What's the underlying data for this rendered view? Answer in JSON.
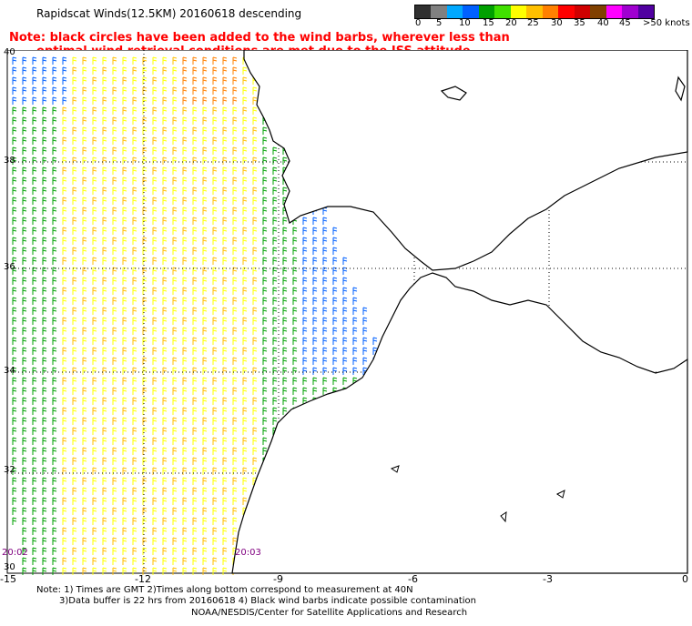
{
  "header": {
    "title": "Rapidscat Winds(12.5KM) 20160618 descending",
    "note_line1": "Note: black circles have been added to the wind barbs, wherever less than",
    "note_line2": "optimal wind retrieval conditions are met due to the ISS attitude changes."
  },
  "legend": {
    "colors": [
      "#303030",
      "#808080",
      "#00a8ff",
      "#0060ff",
      "#00a000",
      "#40e000",
      "#ffff00",
      "#ffc000",
      "#ff8000",
      "#ff0000",
      "#d00000",
      "#804000",
      "#ff00ff",
      "#a000d0",
      "#5000a0"
    ],
    "labels": [
      "0",
      "5",
      "10",
      "15",
      "20",
      "25",
      "30",
      "35",
      "40",
      "45",
      ">50 knots"
    ]
  },
  "axes": {
    "lon_labels": [
      "-15",
      "-12",
      "-9",
      "-6",
      "-3",
      "0"
    ],
    "lat_labels": [
      "40",
      "38",
      "36",
      "34",
      "32",
      "30"
    ]
  },
  "times": {
    "left": "20:02",
    "right": "20:03"
  },
  "footer": {
    "line1": "Note: 1) Times are GMT 2)Times along bottom correspond to measurement at 40N",
    "line2": "3)Data buffer is 22 hrs from 20160618 4) Black wind barbs indicate possible contamination",
    "line3": "NOAA/NESDIS/Center for Satellite Applications and Research"
  }
}
